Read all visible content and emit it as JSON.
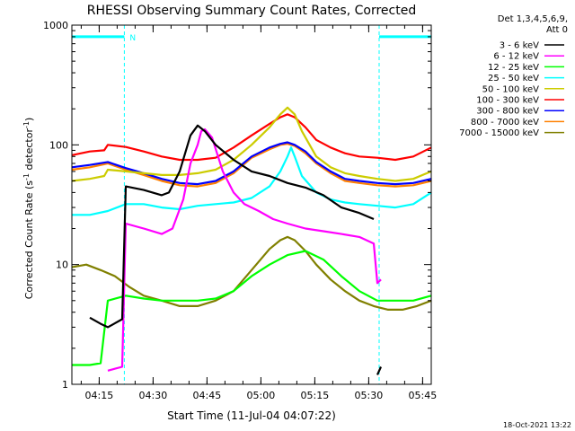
{
  "chart_data": {
    "type": "line",
    "title": "RHESSI Observing Summary Count Rates, Corrected",
    "xlabel": "Start Time (11-Jul-04 04:07:22)",
    "ylabel": "Corrected Count Rate (s",
    "ylabel_sup1": "-1",
    "ylabel_mid": " detector",
    "ylabel_sup2": "-1",
    "ylabel_end": ")",
    "y_scale": "log",
    "ylim": [
      1,
      1000
    ],
    "xlim_minutes": [
      0,
      100
    ],
    "x_ticks": [
      {
        "label": "04:15",
        "t": 7.6
      },
      {
        "label": "04:30",
        "t": 22.6
      },
      {
        "label": "04:45",
        "t": 37.6
      },
      {
        "label": "05:00",
        "t": 52.6
      },
      {
        "label": "05:15",
        "t": 67.6
      },
      {
        "label": "05:30",
        "t": 82.6
      },
      {
        "label": "05:45",
        "t": 97.6
      }
    ],
    "y_ticks": [
      {
        "label": "1",
        "value": 1
      },
      {
        "label": "10",
        "value": 10
      },
      {
        "label": "100",
        "value": 100
      },
      {
        "label": "1000",
        "value": 1000
      }
    ],
    "legend_header": [
      "Det 1,3,4,5,6,9,",
      "Att 0"
    ],
    "night_marker": "N",
    "night_intervals": [
      [
        0,
        14.6
      ],
      [
        85.5,
        100
      ]
    ],
    "saa_level": 800,
    "timestamp": "18-Oct-2021 13:22",
    "series": [
      {
        "name": "3 - 6 keV",
        "color": "#000000",
        "points": [
          [
            5,
            3.6
          ],
          [
            8,
            3.2
          ],
          [
            10,
            3.0
          ],
          [
            14,
            3.5
          ],
          [
            15,
            45
          ],
          [
            20,
            42
          ],
          [
            25,
            38
          ],
          [
            27,
            40
          ],
          [
            30,
            60
          ],
          [
            33,
            120
          ],
          [
            35,
            145
          ],
          [
            37,
            130
          ],
          [
            40,
            100
          ],
          [
            45,
            75
          ],
          [
            50,
            60
          ],
          [
            55,
            55
          ],
          [
            60,
            48
          ],
          [
            65,
            44
          ],
          [
            70,
            38
          ],
          [
            75,
            30
          ],
          [
            80,
            27
          ],
          [
            84,
            24
          ],
          [
            85,
            1.2
          ],
          [
            86,
            1.4
          ]
        ]
      },
      {
        "name": "6 - 12 keV",
        "color": "#ff00ff",
        "points": [
          [
            10,
            1.3
          ],
          [
            14,
            1.4
          ],
          [
            15,
            22
          ],
          [
            20,
            20
          ],
          [
            25,
            18
          ],
          [
            28,
            20
          ],
          [
            31,
            35
          ],
          [
            33,
            70
          ],
          [
            35,
            100
          ],
          [
            36,
            130
          ],
          [
            37,
            135
          ],
          [
            39,
            115
          ],
          [
            42,
            60
          ],
          [
            45,
            40
          ],
          [
            48,
            32
          ],
          [
            52,
            28
          ],
          [
            56,
            24
          ],
          [
            60,
            22
          ],
          [
            65,
            20
          ],
          [
            70,
            19
          ],
          [
            75,
            18
          ],
          [
            80,
            17
          ],
          [
            84,
            15
          ],
          [
            85,
            7
          ],
          [
            86,
            7.5
          ]
        ]
      },
      {
        "name": "12 - 25 keV",
        "color": "#00ff00",
        "points": [
          [
            0,
            1.45
          ],
          [
            5,
            1.45
          ],
          [
            8,
            1.5
          ],
          [
            10,
            5.0
          ],
          [
            15,
            5.5
          ],
          [
            20,
            5.2
          ],
          [
            25,
            5.0
          ],
          [
            30,
            5.0
          ],
          [
            35,
            5.0
          ],
          [
            40,
            5.2
          ],
          [
            45,
            6
          ],
          [
            50,
            8
          ],
          [
            55,
            10
          ],
          [
            60,
            12
          ],
          [
            65,
            13
          ],
          [
            70,
            11
          ],
          [
            75,
            8
          ],
          [
            80,
            6
          ],
          [
            85,
            5
          ],
          [
            90,
            5
          ],
          [
            95,
            5
          ],
          [
            100,
            5.5
          ]
        ]
      },
      {
        "name": "25 - 50 keV",
        "color": "#00ffff",
        "points": [
          [
            0,
            26
          ],
          [
            5,
            26
          ],
          [
            10,
            28
          ],
          [
            15,
            32
          ],
          [
            20,
            32
          ],
          [
            25,
            30
          ],
          [
            30,
            29
          ],
          [
            35,
            31
          ],
          [
            40,
            32
          ],
          [
            45,
            33
          ],
          [
            50,
            36
          ],
          [
            55,
            45
          ],
          [
            58,
            60
          ],
          [
            60,
            80
          ],
          [
            61,
            95
          ],
          [
            62,
            80
          ],
          [
            64,
            55
          ],
          [
            68,
            40
          ],
          [
            72,
            35
          ],
          [
            76,
            33
          ],
          [
            80,
            32
          ],
          [
            85,
            31
          ],
          [
            90,
            30
          ],
          [
            95,
            32
          ],
          [
            100,
            40
          ]
        ]
      },
      {
        "name": "50 - 100 keV",
        "color": "#cccc00",
        "points": [
          [
            0,
            50
          ],
          [
            5,
            52
          ],
          [
            9,
            55
          ],
          [
            10,
            62
          ],
          [
            15,
            60
          ],
          [
            20,
            58
          ],
          [
            25,
            56
          ],
          [
            30,
            56
          ],
          [
            35,
            58
          ],
          [
            40,
            62
          ],
          [
            45,
            75
          ],
          [
            50,
            100
          ],
          [
            55,
            140
          ],
          [
            58,
            180
          ],
          [
            60,
            205
          ],
          [
            62,
            180
          ],
          [
            64,
            130
          ],
          [
            68,
            80
          ],
          [
            72,
            65
          ],
          [
            76,
            58
          ],
          [
            80,
            55
          ],
          [
            85,
            52
          ],
          [
            90,
            50
          ],
          [
            95,
            52
          ],
          [
            100,
            60
          ]
        ]
      },
      {
        "name": "100 - 300 keV",
        "color": "#ff0000",
        "points": [
          [
            0,
            82
          ],
          [
            5,
            88
          ],
          [
            9,
            90
          ],
          [
            10,
            100
          ],
          [
            15,
            96
          ],
          [
            20,
            88
          ],
          [
            25,
            80
          ],
          [
            30,
            75
          ],
          [
            35,
            75
          ],
          [
            40,
            78
          ],
          [
            45,
            95
          ],
          [
            50,
            120
          ],
          [
            55,
            150
          ],
          [
            58,
            170
          ],
          [
            60,
            180
          ],
          [
            62,
            170
          ],
          [
            65,
            140
          ],
          [
            68,
            110
          ],
          [
            72,
            95
          ],
          [
            76,
            85
          ],
          [
            80,
            80
          ],
          [
            85,
            78
          ],
          [
            90,
            75
          ],
          [
            95,
            80
          ],
          [
            100,
            95
          ]
        ]
      },
      {
        "name": "300 - 800 keV",
        "color": "#0000ff",
        "points": [
          [
            0,
            65
          ],
          [
            5,
            68
          ],
          [
            10,
            72
          ],
          [
            15,
            64
          ],
          [
            20,
            58
          ],
          [
            25,
            52
          ],
          [
            30,
            48
          ],
          [
            35,
            47
          ],
          [
            40,
            50
          ],
          [
            45,
            60
          ],
          [
            50,
            80
          ],
          [
            55,
            95
          ],
          [
            58,
            102
          ],
          [
            60,
            105
          ],
          [
            62,
            100
          ],
          [
            65,
            88
          ],
          [
            68,
            72
          ],
          [
            72,
            60
          ],
          [
            76,
            52
          ],
          [
            80,
            50
          ],
          [
            85,
            48
          ],
          [
            90,
            47
          ],
          [
            95,
            48
          ],
          [
            100,
            52
          ]
        ]
      },
      {
        "name": "800 - 7000 keV",
        "color": "#ff8000",
        "points": [
          [
            0,
            62
          ],
          [
            5,
            65
          ],
          [
            10,
            70
          ],
          [
            15,
            62
          ],
          [
            20,
            56
          ],
          [
            25,
            50
          ],
          [
            30,
            46
          ],
          [
            35,
            45
          ],
          [
            40,
            48
          ],
          [
            45,
            58
          ],
          [
            50,
            78
          ],
          [
            55,
            92
          ],
          [
            58,
            100
          ],
          [
            60,
            102
          ],
          [
            62,
            98
          ],
          [
            65,
            85
          ],
          [
            68,
            70
          ],
          [
            72,
            58
          ],
          [
            76,
            50
          ],
          [
            80,
            48
          ],
          [
            85,
            46
          ],
          [
            90,
            45
          ],
          [
            95,
            46
          ],
          [
            100,
            50
          ]
        ]
      },
      {
        "name": "7000 - 15000 keV",
        "color": "#808000",
        "points": [
          [
            0,
            9.5
          ],
          [
            4,
            10
          ],
          [
            8,
            9.0
          ],
          [
            12,
            8.0
          ],
          [
            16,
            6.5
          ],
          [
            20,
            5.5
          ],
          [
            25,
            5.0
          ],
          [
            30,
            4.5
          ],
          [
            35,
            4.5
          ],
          [
            40,
            5.0
          ],
          [
            45,
            6.0
          ],
          [
            50,
            9.0
          ],
          [
            55,
            13.5
          ],
          [
            58,
            16
          ],
          [
            60,
            17
          ],
          [
            62,
            16
          ],
          [
            65,
            13
          ],
          [
            68,
            10
          ],
          [
            72,
            7.5
          ],
          [
            76,
            6.0
          ],
          [
            80,
            5.0
          ],
          [
            84,
            4.5
          ],
          [
            88,
            4.2
          ],
          [
            92,
            4.2
          ],
          [
            96,
            4.5
          ],
          [
            100,
            5.0
          ]
        ]
      }
    ]
  }
}
